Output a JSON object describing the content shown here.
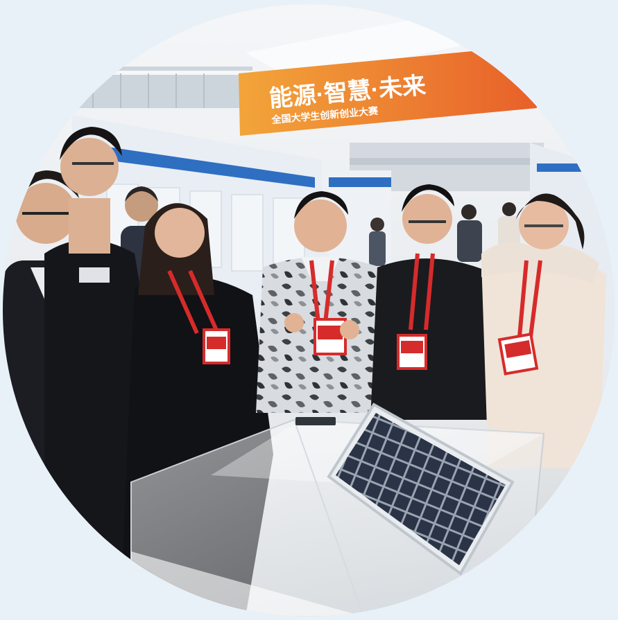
{
  "photo": {
    "alt_subject": "students-at-solar-panel-exhibit",
    "banner": {
      "title": "能源·智慧·未来",
      "subtitle": "全国大学生创新创业大赛"
    }
  },
  "colors": {
    "background": "#e9f1f8",
    "banner_orange": "#e8602a",
    "banner_gold": "#f2a53a",
    "lanyard_red": "#d62b2b",
    "solar_cell": "#2b3446"
  }
}
